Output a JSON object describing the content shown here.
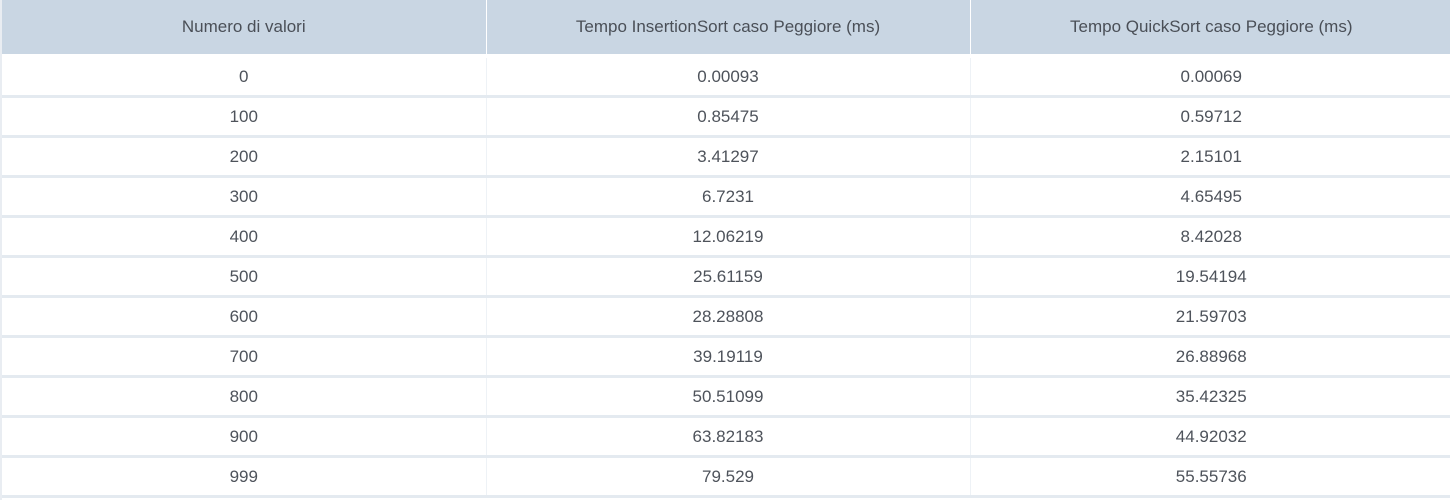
{
  "table": {
    "headers": [
      "Numero di valori",
      "Tempo InsertionSort caso Peggiore (ms)",
      "Tempo QuickSort caso Peggiore (ms)"
    ],
    "rows": [
      [
        "0",
        "0.00093",
        "0.00069"
      ],
      [
        "100",
        "0.85475",
        "0.59712"
      ],
      [
        "200",
        "3.41297",
        "2.15101"
      ],
      [
        "300",
        "6.7231",
        "4.65495"
      ],
      [
        "400",
        "12.06219",
        "8.42028"
      ],
      [
        "500",
        "25.61159",
        "19.54194"
      ],
      [
        "600",
        "28.28808",
        "21.59703"
      ],
      [
        "700",
        "39.19119",
        "26.88968"
      ],
      [
        "800",
        "50.51099",
        "35.42325"
      ],
      [
        "900",
        "63.82183",
        "44.92032"
      ],
      [
        "999",
        "79.529",
        "55.55736"
      ]
    ]
  },
  "colors": {
    "header_bg": "#c9d6e3",
    "row_border": "#e4eaf0",
    "text": "#4e535b"
  }
}
